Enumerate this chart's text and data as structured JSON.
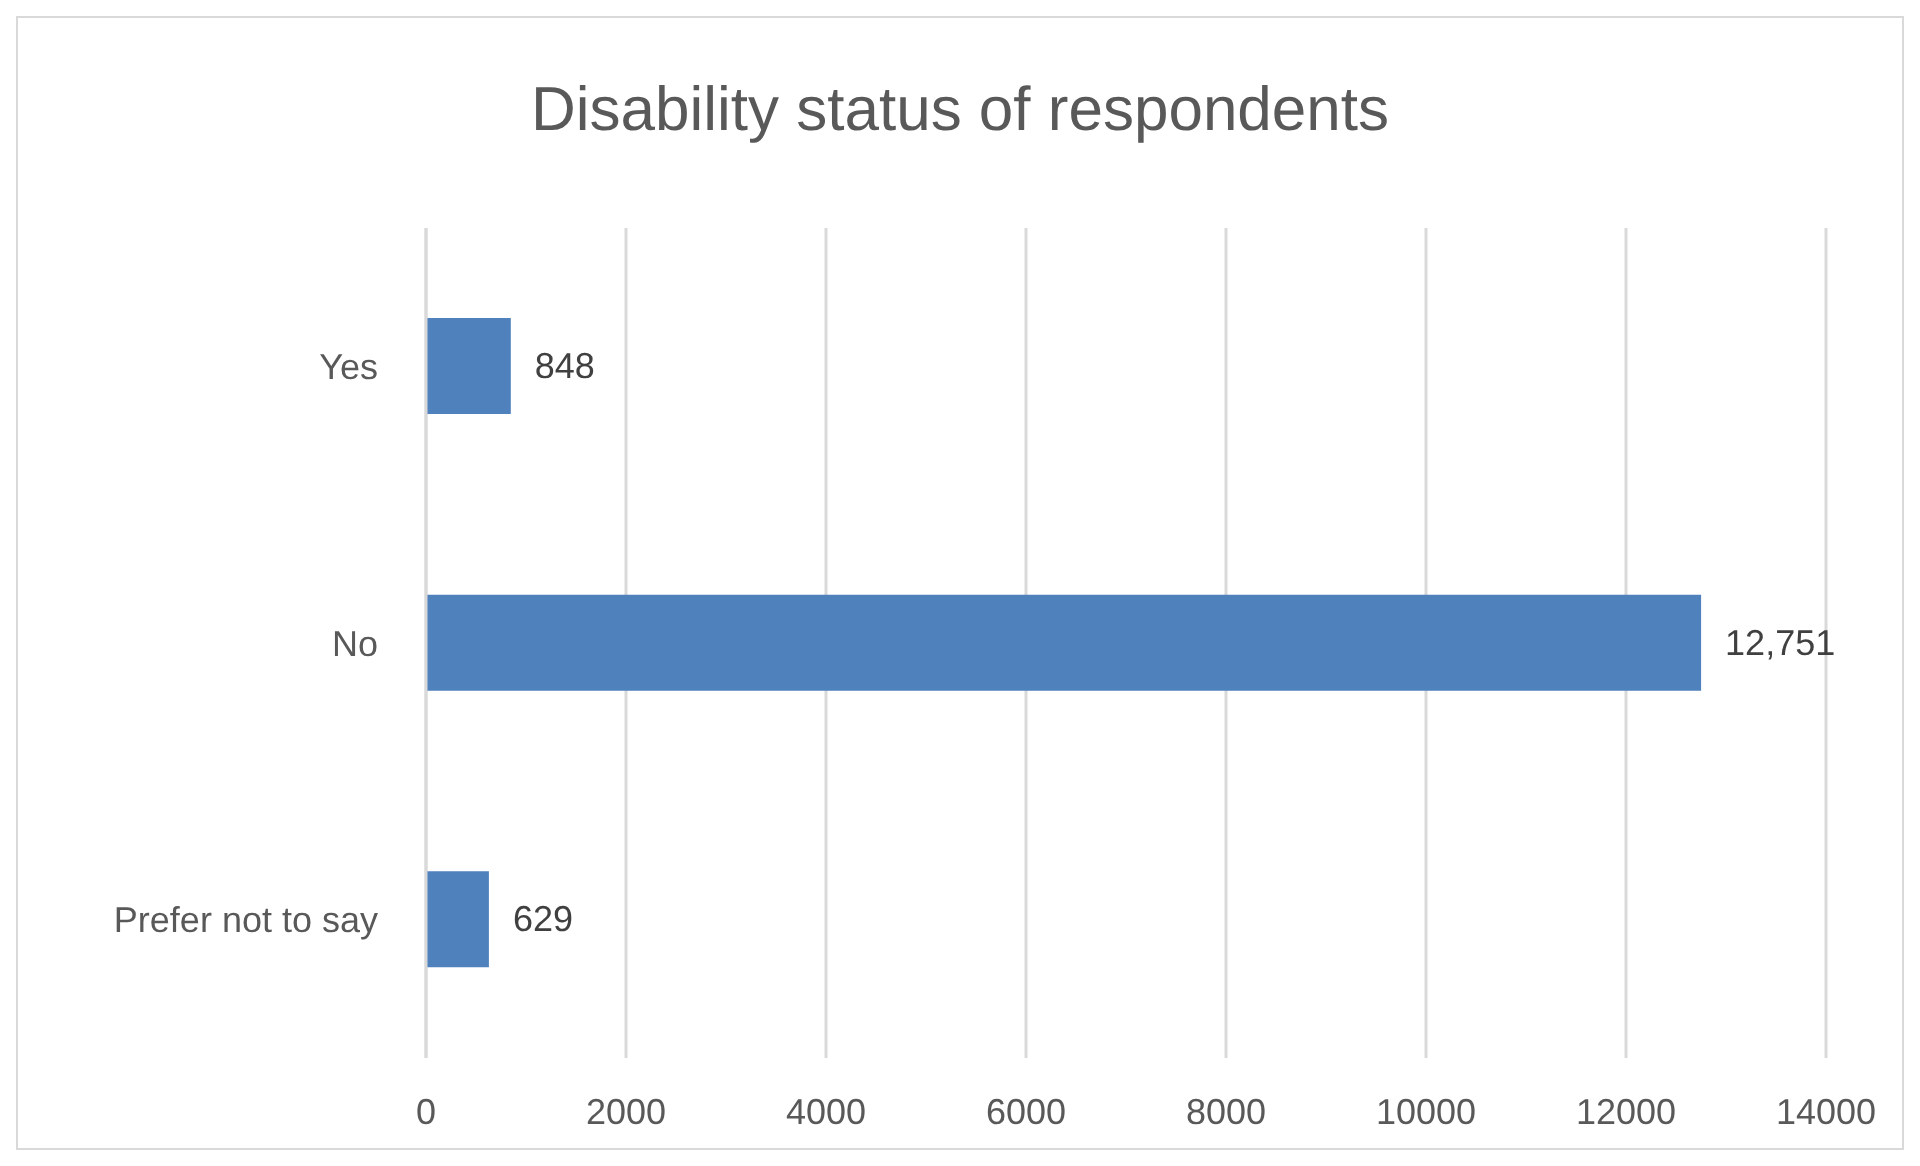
{
  "chart_data": {
    "type": "bar",
    "orientation": "horizontal",
    "title": "Disability status of respondents",
    "categories": [
      "Yes",
      "No",
      "Prefer not to say"
    ],
    "values": [
      848,
      12751,
      629
    ],
    "value_labels": [
      "848",
      "12,751",
      "629"
    ],
    "color": "#4f81bd",
    "xlim": [
      0,
      14000
    ],
    "xticks": [
      0,
      2000,
      4000,
      6000,
      8000,
      10000,
      12000,
      14000
    ],
    "grid": "x"
  }
}
